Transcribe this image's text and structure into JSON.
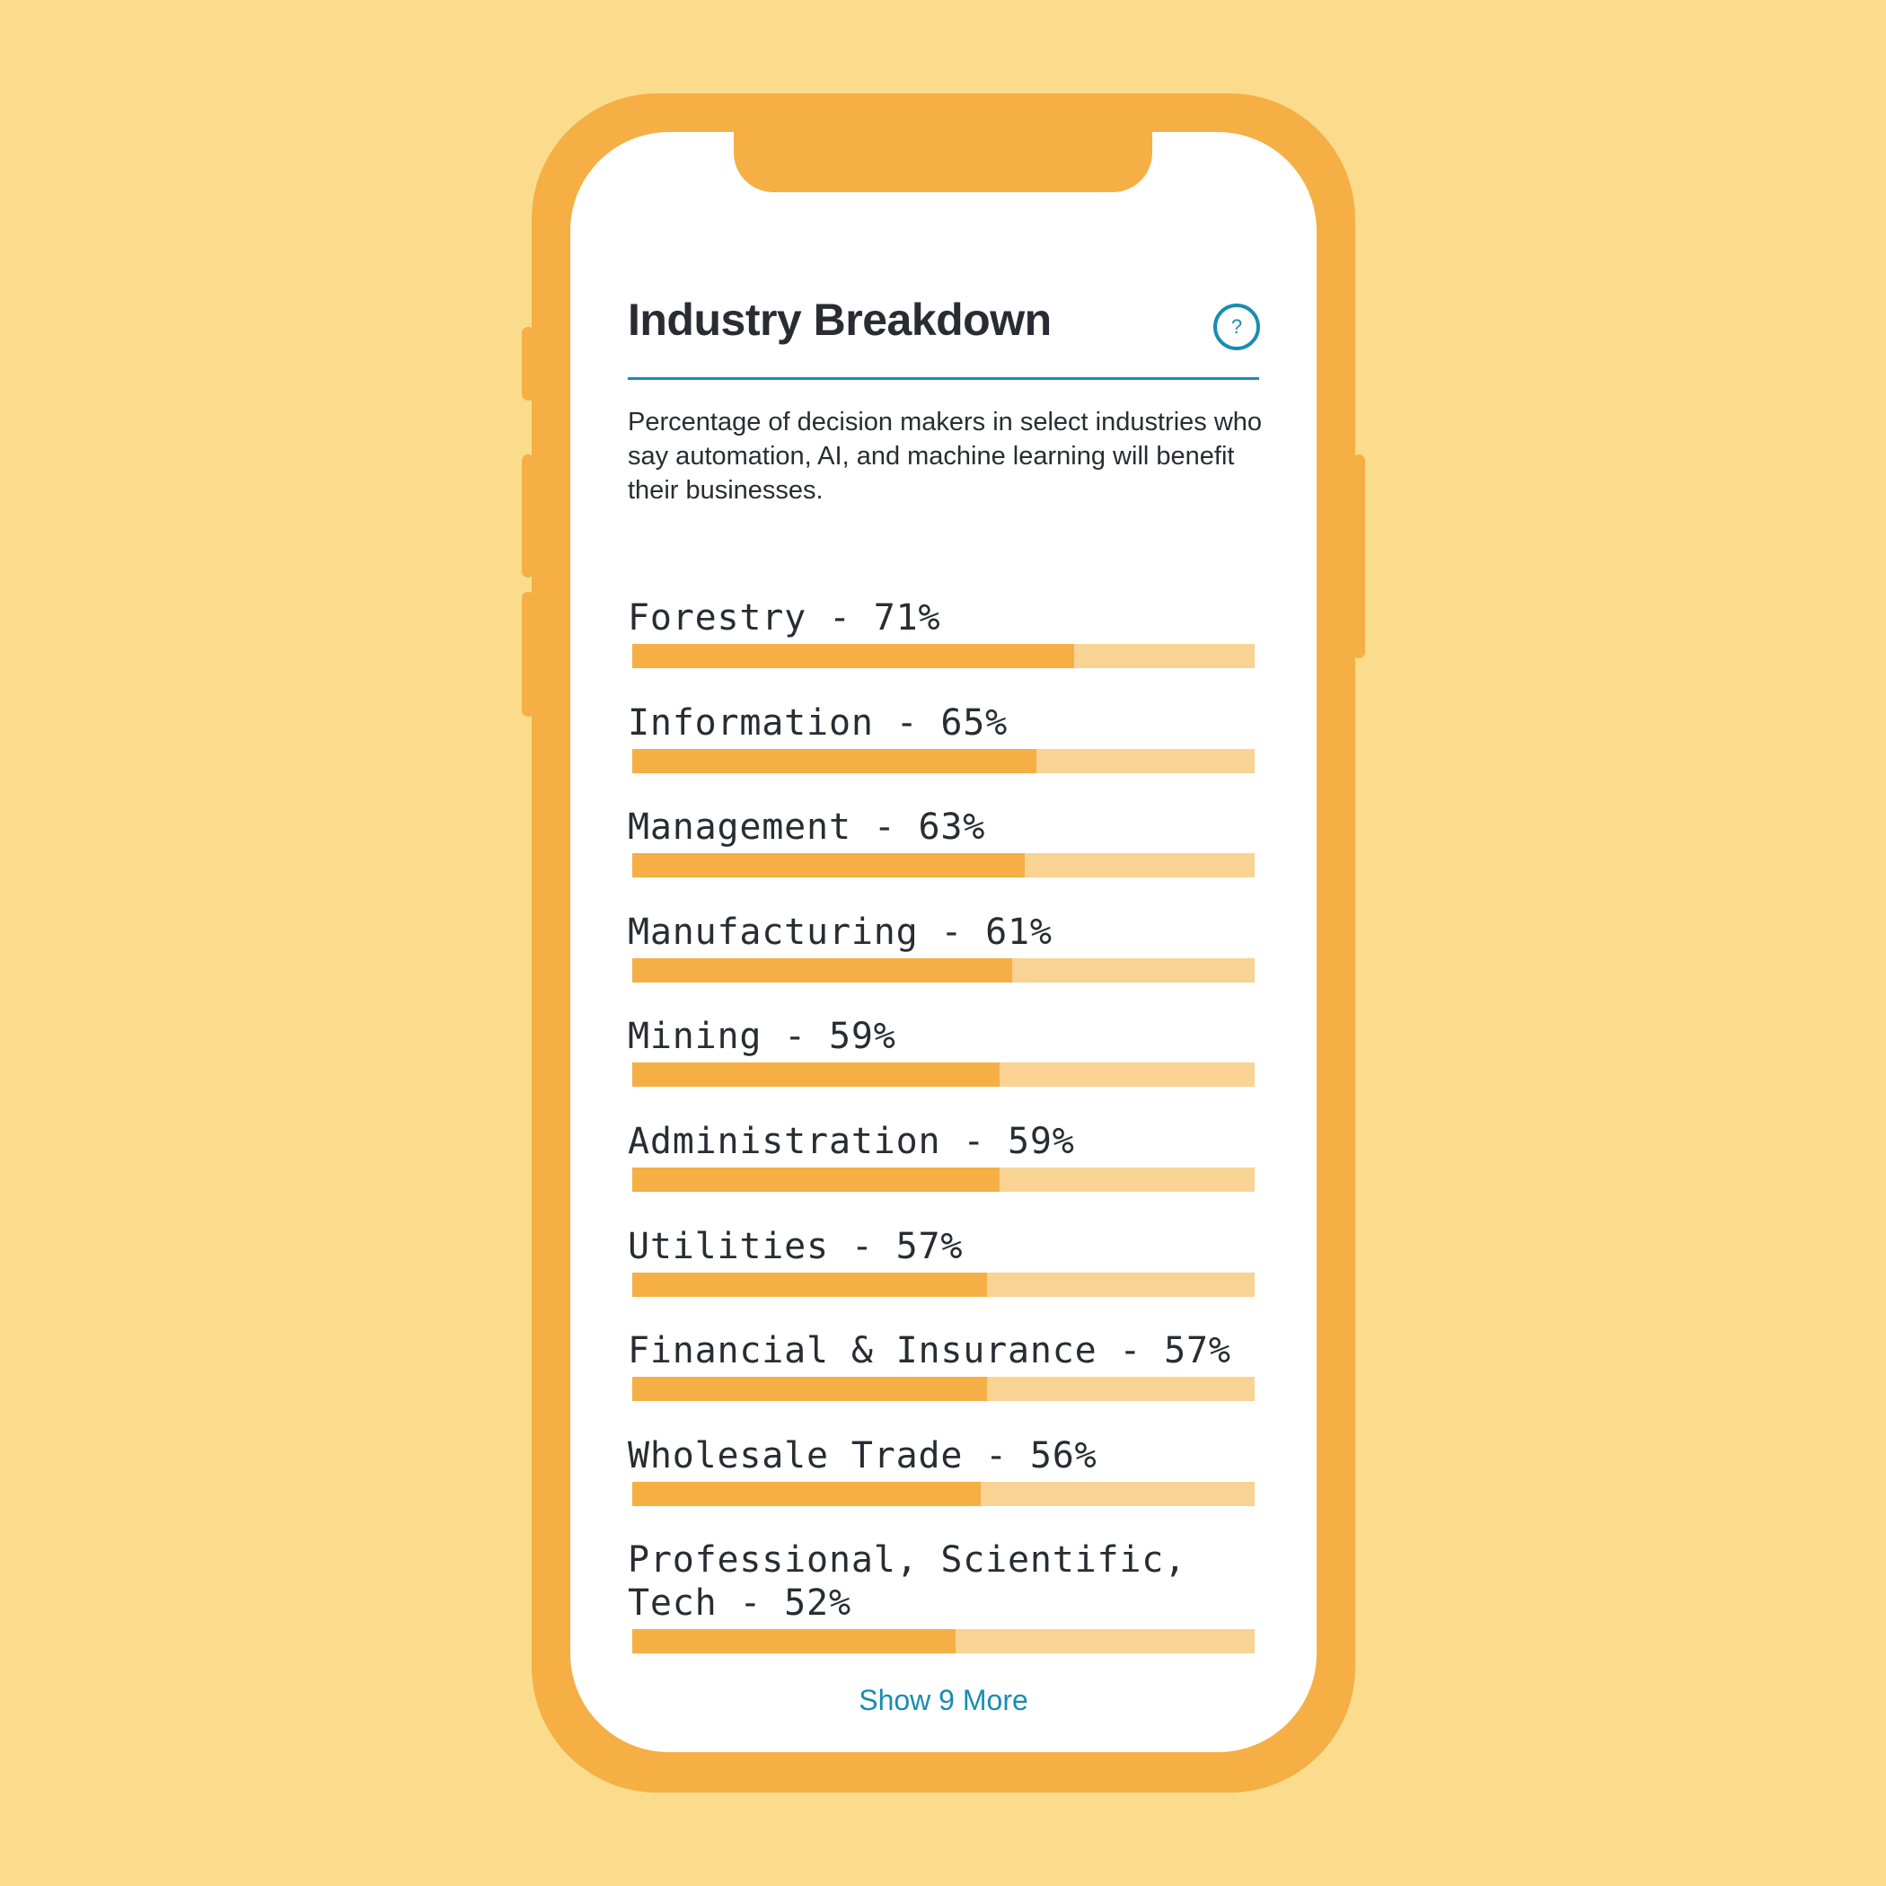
{
  "colors": {
    "background": "#fadc8c",
    "phone": "#f5af44",
    "bar_fill": "#f5af44",
    "bar_track": "#f8d393",
    "accent": "#1a8cb0",
    "text": "#2a2c33"
  },
  "header": {
    "title": "Industry Breakdown",
    "help_icon": "question-circle-icon",
    "help_label": "?"
  },
  "description": "Percentage of decision makers in select industries who say automation, AI, and machine learning will benefit their businesses.",
  "chart_data": {
    "type": "bar",
    "categories": [
      "Forestry",
      "Information",
      "Management",
      "Manufacturing",
      "Mining",
      "Administration",
      "Utilities",
      "Financial & Insurance",
      "Wholesale Trade",
      "Professional, Scientific, Tech"
    ],
    "values": [
      71,
      65,
      63,
      61,
      59,
      59,
      57,
      57,
      56,
      52
    ],
    "labels": [
      "Forestry - 71%",
      "Information - 65%",
      "Management - 63%",
      "Manufacturing - 61%",
      "Mining - 59%",
      "Administration - 59%",
      "Utilities - 57%",
      "Financial & Insurance - 57%",
      "Wholesale Trade - 56%",
      "Professional, Scientific, Tech - 52%"
    ],
    "ylim": [
      0,
      100
    ]
  },
  "footer": {
    "show_more": "Show 9 More"
  }
}
